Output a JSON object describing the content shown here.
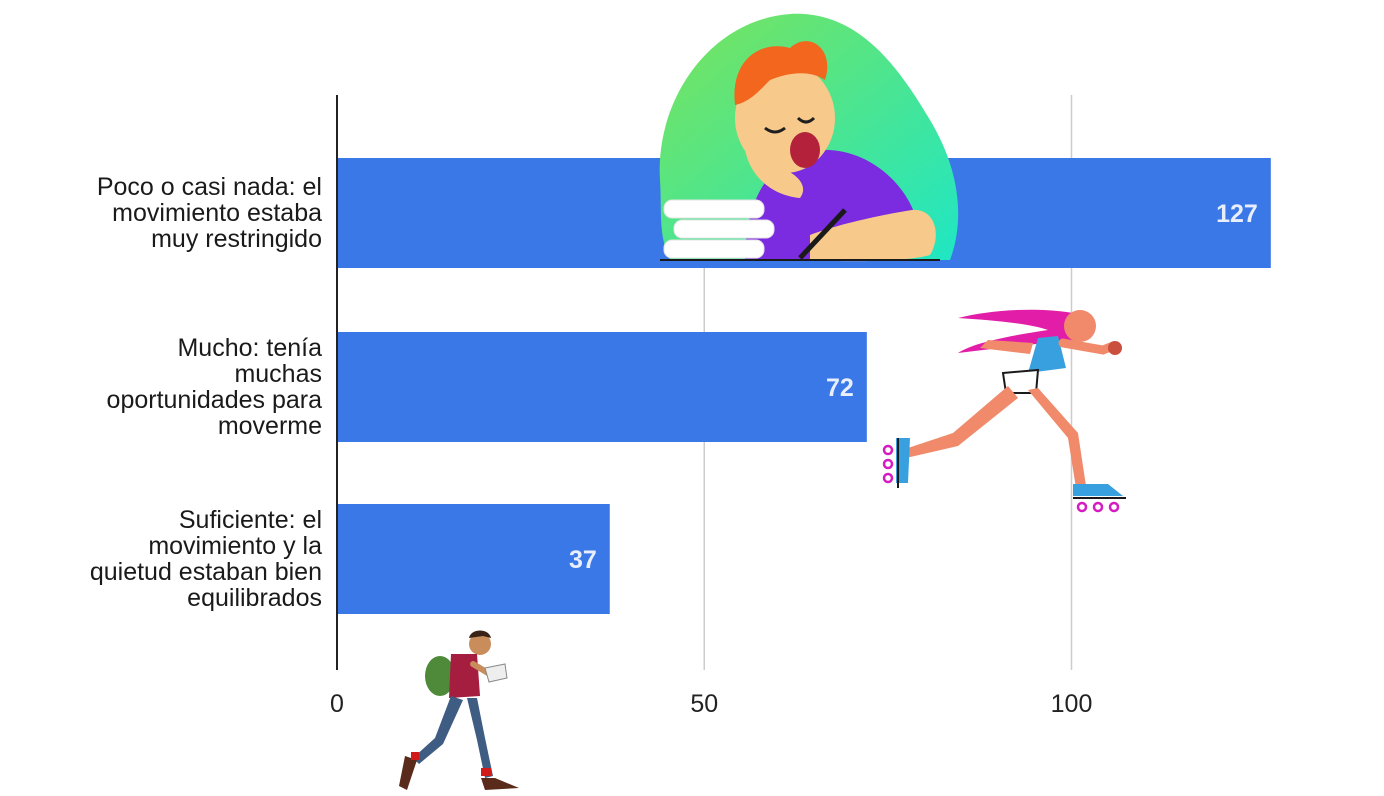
{
  "chart_data": {
    "type": "bar",
    "orientation": "horizontal",
    "categories": [
      "Poco o casi nada: el movimiento estaba muy restringido",
      "Mucho: tenía muchas oportunidades para moverme",
      "Suficiente: el movimiento y la quietud estaban bien equilibrados"
    ],
    "category_lines": [
      [
        "Poco o casi nada: el",
        "movimiento estaba",
        "muy restringido"
      ],
      [
        "Mucho: tenía",
        "muchas",
        "oportunidades para",
        "moverme"
      ],
      [
        "Suficiente: el",
        "movimiento y la",
        "quietud estaban bien",
        "equilibrados"
      ]
    ],
    "values": [
      127,
      72,
      37
    ],
    "data_labels": [
      "127",
      "72",
      "37"
    ],
    "xticks": [
      "0",
      "50",
      "100"
    ],
    "xlim": [
      0,
      130
    ],
    "grid": true,
    "colors": {
      "bar": "#3b78e7",
      "grid": "#cccccc",
      "axis": "#222222",
      "data_label": "#e8eefc"
    }
  },
  "illustrations": [
    {
      "name": "sleeping-student-illustration"
    },
    {
      "name": "roller-skater-illustration"
    },
    {
      "name": "walking-student-illustration"
    }
  ]
}
